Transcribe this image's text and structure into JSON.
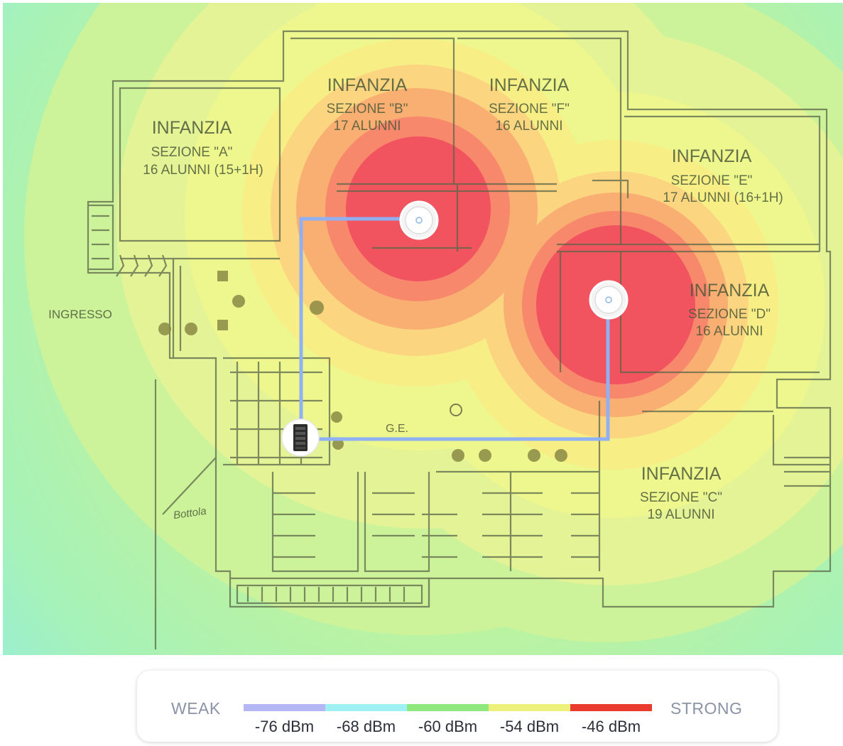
{
  "heatmap": {
    "rooms": [
      {
        "id": "a",
        "lines": [
          "INFANZIA",
          "SEZIONE \"A\"",
          "16 ALUNNI (15+1H)"
        ]
      },
      {
        "id": "b",
        "lines": [
          "INFANZIA",
          "SEZIONE \"B\"",
          "17 ALUNNI"
        ]
      },
      {
        "id": "f",
        "lines": [
          "INFANZIA",
          "SEZIONE \"F\"",
          "16 ALUNNI"
        ]
      },
      {
        "id": "e",
        "lines": [
          "INFANZIA",
          "SEZIONE \"E\"",
          "17 ALUNNI (16+1H)"
        ]
      },
      {
        "id": "d",
        "lines": [
          "INFANZIA",
          "SEZIONE \"D\"",
          "16 ALUNNI"
        ]
      },
      {
        "id": "c",
        "lines": [
          "INFANZIA",
          "SEZIONE \"C\"",
          "19 ALUNNI"
        ]
      }
    ],
    "entrance_label": "INGRESSO",
    "stair_note": "G.E.",
    "handwritten_note": "Bottola",
    "devices": [
      {
        "name": "access-point-b",
        "icon": "access-point-icon"
      },
      {
        "name": "access-point-d",
        "icon": "access-point-icon"
      },
      {
        "name": "switch",
        "icon": "network-switch-icon"
      }
    ]
  },
  "legend": {
    "weak_label": "WEAK",
    "strong_label": "STRONG",
    "levels": [
      "-76 dBm",
      "-68 dBm",
      "-60 dBm",
      "-54 dBm",
      "-46 dBm"
    ],
    "colors": [
      "#b3b8f4",
      "#9ff0f4",
      "#8ee87e",
      "#eef07c",
      "#e93b2e"
    ]
  },
  "colors": {
    "strong": "#f2545f",
    "weak": "#9ef0da",
    "cable": "#8fb1f4"
  }
}
